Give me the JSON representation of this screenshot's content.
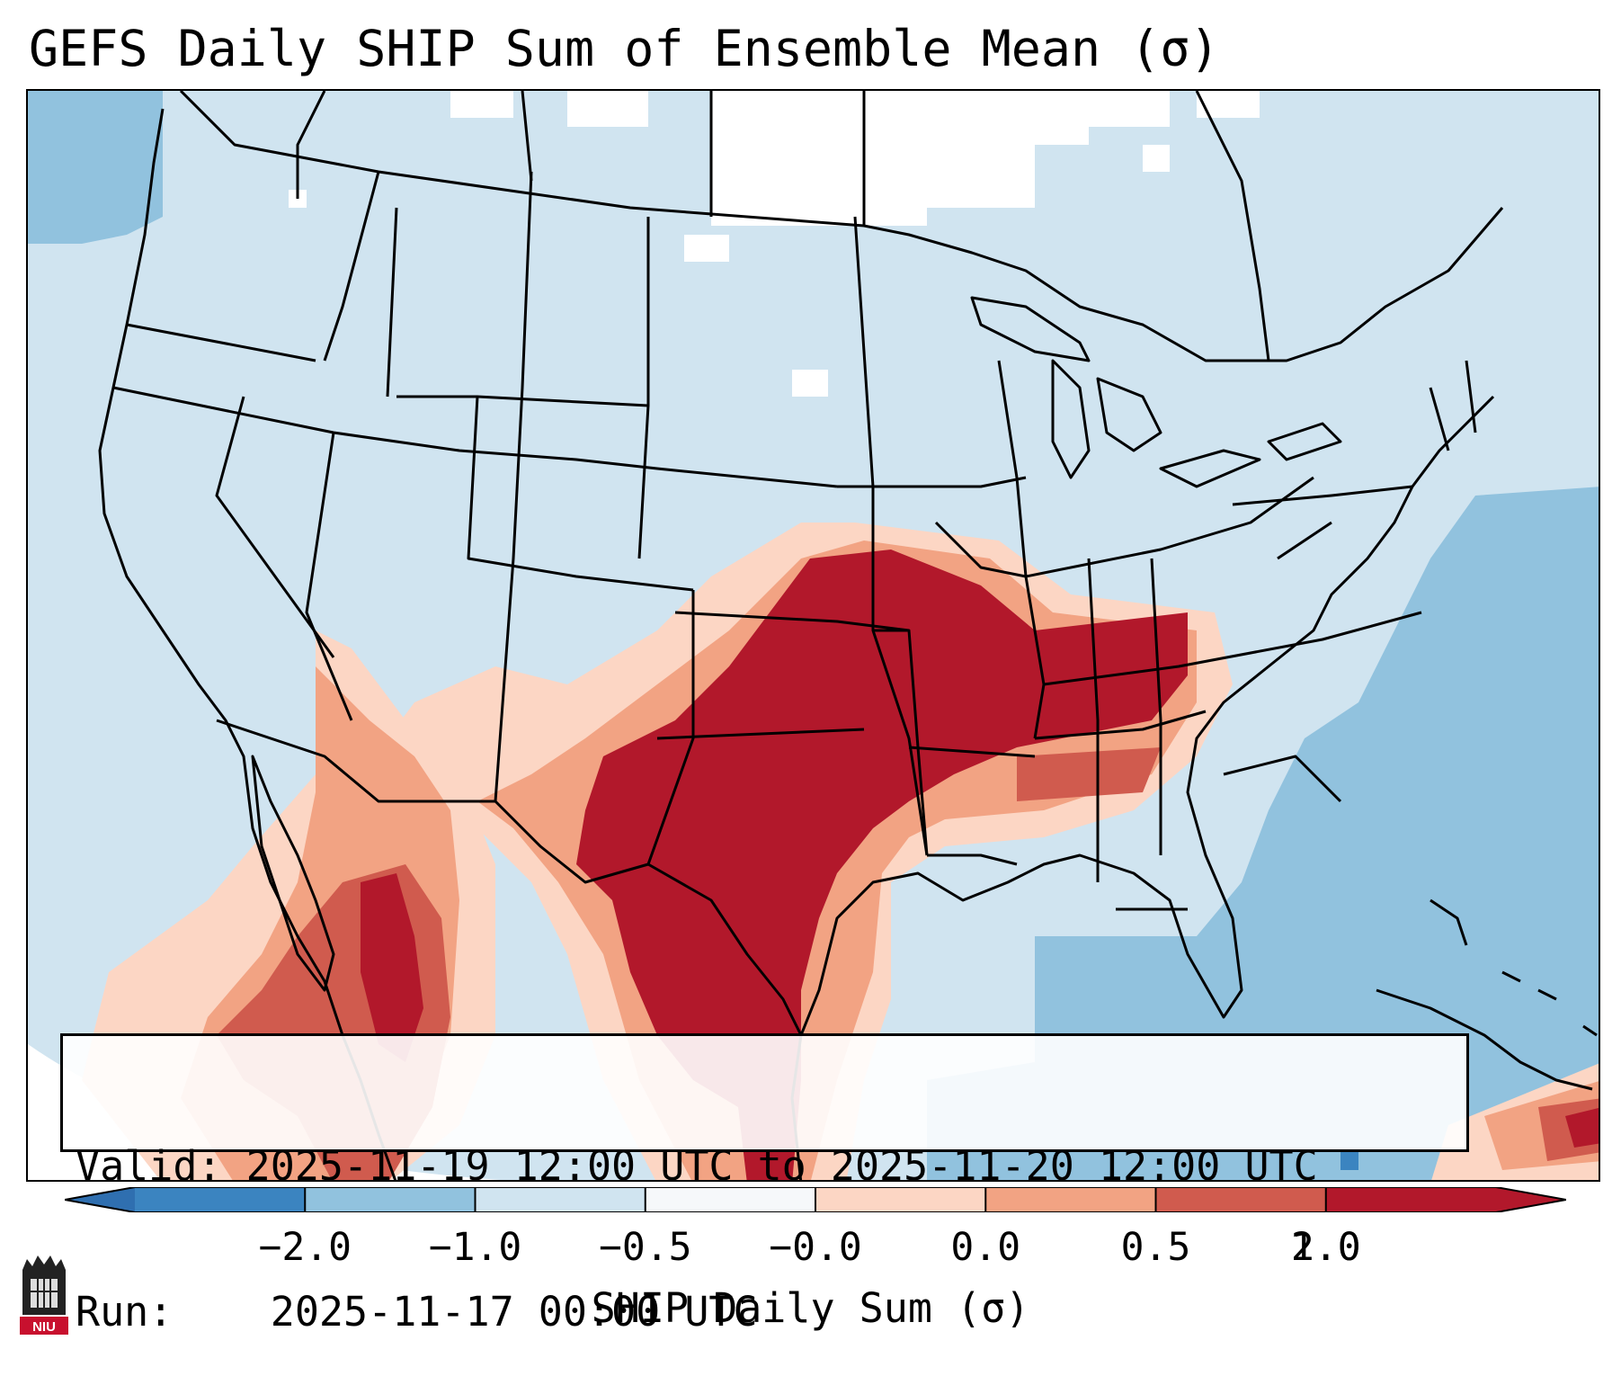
{
  "title": "GEFS Daily SHIP Sum of Ensemble Mean (σ)",
  "info": {
    "valid_label": "Valid:",
    "valid_value": "2025-11-19 12:00 UTC to 2025-11-20 12:00 UTC",
    "run_label": "Run:",
    "run_value": "2025-11-17 00:00 UTC"
  },
  "colorbar": {
    "label": "SHIP Daily Sum (σ)",
    "ticks": [
      "−2.0",
      "−1.0",
      "−0.5",
      "−0.0",
      "0.0",
      "0.5",
      "1.0",
      "2.0"
    ],
    "colors": [
      "#3b84c0",
      "#91c2de",
      "#d0e4f0",
      "#f6f8fa",
      "#fcd6c4",
      "#f2a383",
      "#d05b4e",
      "#b2182b"
    ],
    "under_color": "#2f6fb0",
    "over_color": "#b2182b"
  },
  "map": {
    "field_colors": {
      "neutral": "#d0e4f0",
      "near_zero": "#ffffff",
      "negative_1": "#91c2de",
      "negative_2": "#3b84c0",
      "positive_1": "#fcd6c4",
      "positive_2": "#f2a383",
      "positive_3": "#d05b4e",
      "positive_4": "#b2182b"
    }
  },
  "logo": {
    "text": "NIU",
    "color": "#c8102e"
  }
}
